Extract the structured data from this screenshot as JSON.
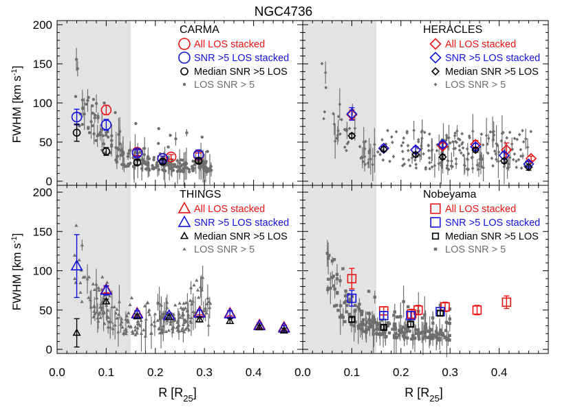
{
  "figure": {
    "title": "NGC4736",
    "ylabel": "FWHM [km s",
    "ylabel_sup": "-1",
    "ylabel_close": "]",
    "xlabel": "R [R",
    "xlabel_sub": "25",
    "xlabel_close": "]",
    "colors": {
      "red": "#ee1111",
      "blue": "#1111dd",
      "black": "#000000",
      "grey": "#6e6e6e",
      "shade": "#e3e3e3"
    }
  },
  "chart_data": [
    {
      "type": "scatter",
      "panel": "CARMA",
      "marker": "circle",
      "shaded_x": [
        0.0,
        0.15
      ],
      "xlim": [
        0.0,
        0.5
      ],
      "ylim": [
        0,
        200
      ],
      "xticks": [],
      "yticks": [
        "0",
        "50",
        "100",
        "150",
        "200"
      ],
      "legend": [
        "All LOS stacked",
        "SNR >5 LOS stacked",
        "Median SNR >5 LOS",
        "LOS SNR > 5"
      ],
      "series": [
        {
          "name": "All LOS stacked",
          "color": "red",
          "x": [
            0.1,
            0.163,
            0.215,
            0.232,
            0.288
          ],
          "y": [
            91,
            37,
            29,
            31,
            33
          ],
          "err": [
            6,
            4,
            3,
            3,
            3
          ]
        },
        {
          "name": "SNR >5 LOS stacked",
          "color": "blue",
          "x": [
            0.04,
            0.1,
            0.163,
            0.215,
            0.288
          ],
          "y": [
            82,
            72,
            36,
            29,
            34
          ],
          "err": [
            10,
            7,
            4,
            3,
            4
          ]
        },
        {
          "name": "Median SNR >5 LOS",
          "color": "black",
          "x": [
            0.04,
            0.1,
            0.163,
            0.215,
            0.288
          ],
          "y": [
            62,
            38,
            24,
            25,
            26
          ],
          "err": [
            11,
            5,
            3,
            3,
            3
          ]
        }
      ]
    },
    {
      "type": "scatter",
      "panel": "HERACLES",
      "marker": "diamond",
      "shaded_x": [
        0.0,
        0.15
      ],
      "xlim": [
        0.0,
        0.5
      ],
      "ylim": [
        0,
        200
      ],
      "xticks": [],
      "yticks": [],
      "legend": [
        "All LOS stacked",
        "SNR >5 LOS stacked",
        "Median SNR >5 LOS",
        "LOS SNR > 5"
      ],
      "series": [
        {
          "name": "All LOS stacked",
          "color": "red",
          "x": [
            0.1,
            0.165,
            0.23,
            0.285,
            0.352,
            0.415,
            0.465
          ],
          "y": [
            85,
            42,
            40,
            45,
            47,
            40,
            29
          ],
          "err": [
            6,
            4,
            4,
            4,
            5,
            9,
            3
          ]
        },
        {
          "name": "SNR >5 LOS stacked",
          "color": "blue",
          "x": [
            0.1,
            0.165,
            0.23,
            0.285,
            0.352,
            0.41,
            0.46
          ],
          "y": [
            86,
            42,
            40,
            47,
            44,
            33,
            22
          ],
          "err": [
            8,
            4,
            4,
            4,
            4,
            4,
            3
          ]
        },
        {
          "name": "Median SNR >5 LOS",
          "color": "black",
          "x": [
            0.1,
            0.165,
            0.23,
            0.285,
            0.352,
            0.41,
            0.46
          ],
          "y": [
            58,
            41,
            34,
            31,
            40,
            26,
            18
          ],
          "err": [
            3,
            3,
            3,
            3,
            3,
            3,
            4
          ]
        }
      ]
    },
    {
      "type": "scatter",
      "panel": "THINGS",
      "marker": "triangle",
      "shaded_x": [
        0.0,
        0.15
      ],
      "xlim": [
        0.0,
        0.5
      ],
      "ylim": [
        0,
        200
      ],
      "xticks": [
        "0.0",
        "0.1",
        "0.2",
        "0.3",
        "0.4"
      ],
      "yticks": [
        "0",
        "50",
        "100",
        "150",
        "200"
      ],
      "legend": [
        "All LOS stacked",
        "SNR >5 LOS stacked",
        "Median SNR >5 LOS",
        "LOS SNR > 5"
      ],
      "series": [
        {
          "name": "All LOS stacked",
          "color": "red",
          "x": [
            0.1,
            0.163,
            0.228,
            0.29,
            0.352,
            0.412,
            0.462
          ],
          "y": [
            76,
            46,
            43,
            47,
            46,
            31,
            28
          ],
          "err": [
            4,
            3,
            3,
            3,
            3,
            3,
            3
          ]
        },
        {
          "name": "SNR >5 LOS stacked",
          "color": "blue",
          "x": [
            0.04,
            0.1,
            0.163,
            0.228,
            0.29,
            0.352,
            0.412,
            0.462
          ],
          "y": [
            106,
            75,
            45,
            43,
            46,
            45,
            30,
            27
          ],
          "err": [
            40,
            6,
            4,
            3,
            4,
            4,
            3,
            3
          ]
        },
        {
          "name": "Median SNR >5 LOS",
          "color": "black",
          "x": [
            0.04,
            0.1,
            0.163,
            0.228,
            0.29,
            0.352,
            0.412,
            0.462
          ],
          "y": [
            21,
            61,
            42,
            41,
            38,
            36,
            28,
            24
          ],
          "err": [
            18,
            3,
            3,
            3,
            3,
            3,
            3,
            3
          ]
        }
      ]
    },
    {
      "type": "scatter",
      "panel": "Nobeyama",
      "marker": "square",
      "shaded_x": [
        0.0,
        0.15
      ],
      "xlim": [
        0.0,
        0.5
      ],
      "ylim": [
        0,
        200
      ],
      "xticks": [
        "0.0",
        "0.1",
        "0.2",
        "0.3",
        "0.4"
      ],
      "yticks": [],
      "legend": [
        "All LOS stacked",
        "SNR >5 LOS stacked",
        "Median SNR >5 LOS",
        "LOS SNR > 5"
      ],
      "series": [
        {
          "name": "All LOS stacked",
          "color": "red",
          "x": [
            0.1,
            0.165,
            0.222,
            0.235,
            0.29,
            0.355,
            0.415
          ],
          "y": [
            90,
            49,
            45,
            50,
            54,
            50,
            60
          ],
          "err": [
            13,
            5,
            6,
            6,
            6,
            6,
            8
          ]
        },
        {
          "name": "SNR >5 LOS stacked",
          "color": "blue",
          "x": [
            0.1,
            0.165,
            0.22,
            0.28
          ],
          "y": [
            65,
            43,
            43,
            48
          ],
          "err": [
            10,
            5,
            5,
            5
          ]
        },
        {
          "name": "Median SNR >5 LOS",
          "color": "black",
          "x": [
            0.1,
            0.165,
            0.22,
            0.28
          ],
          "y": [
            38,
            28,
            32,
            46
          ],
          "err": [
            3,
            3,
            3,
            3
          ]
        }
      ]
    }
  ]
}
